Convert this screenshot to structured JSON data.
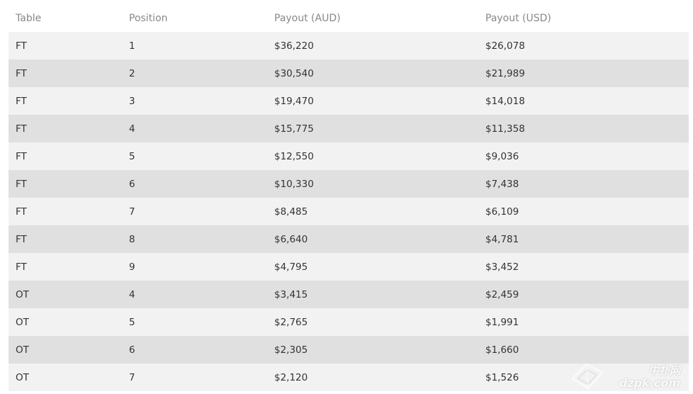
{
  "table": {
    "headers": [
      "Table",
      "Position",
      "Payout (AUD)",
      "Payout (USD)"
    ],
    "rows": [
      {
        "table": "FT",
        "position": "1",
        "aud": "$36,220",
        "usd": "$26,078"
      },
      {
        "table": "FT",
        "position": "2",
        "aud": "$30,540",
        "usd": "$21,989"
      },
      {
        "table": "FT",
        "position": "3",
        "aud": "$19,470",
        "usd": "$14,018"
      },
      {
        "table": "FT",
        "position": "4",
        "aud": "$15,775",
        "usd": "$11,358"
      },
      {
        "table": "FT",
        "position": "5",
        "aud": "$12,550",
        "usd": "$9,036"
      },
      {
        "table": "FT",
        "position": "6",
        "aud": "$10,330",
        "usd": "$7,438"
      },
      {
        "table": "FT",
        "position": "7",
        "aud": "$8,485",
        "usd": "$6,109"
      },
      {
        "table": "FT",
        "position": "8",
        "aud": "$6,640",
        "usd": "$4,781"
      },
      {
        "table": "FT",
        "position": "9",
        "aud": "$4,795",
        "usd": "$3,452"
      },
      {
        "table": "OT",
        "position": "4",
        "aud": "$3,415",
        "usd": "$2,459"
      },
      {
        "table": "OT",
        "position": "5",
        "aud": "$2,765",
        "usd": "$1,991"
      },
      {
        "table": "OT",
        "position": "6",
        "aud": "$2,305",
        "usd": "$1,660"
      },
      {
        "table": "OT",
        "position": "7",
        "aud": "$2,120",
        "usd": "$1,526"
      }
    ]
  },
  "watermark": {
    "text_cn": "中扑网",
    "text_url": "dzpk.com"
  },
  "colors": {
    "header_text": "#888888",
    "row_light": "#f2f2f2",
    "row_dark": "#e0e0e0",
    "body_text": "#333333"
  }
}
